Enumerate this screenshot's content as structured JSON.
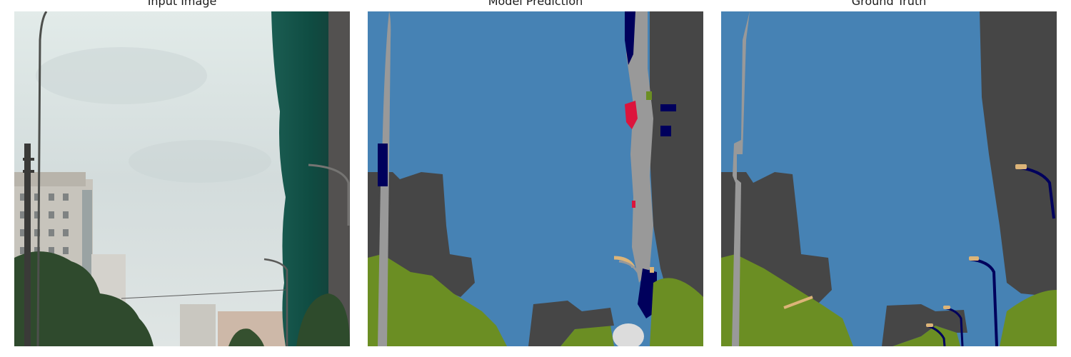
{
  "panels": [
    {
      "title": "Input Image"
    },
    {
      "title": "Model Prediction"
    },
    {
      "title": "Ground Truth"
    }
  ],
  "segmentation_colors": {
    "sky": "#4682b4",
    "building": "#464646",
    "vegetation": "#6b8e23",
    "pole": "#999999",
    "car": "#00005c",
    "person": "#dc143c",
    "street_light": "#dcb478",
    "terrain": "#98fb98",
    "traffic_sign": "#dcdc00"
  }
}
